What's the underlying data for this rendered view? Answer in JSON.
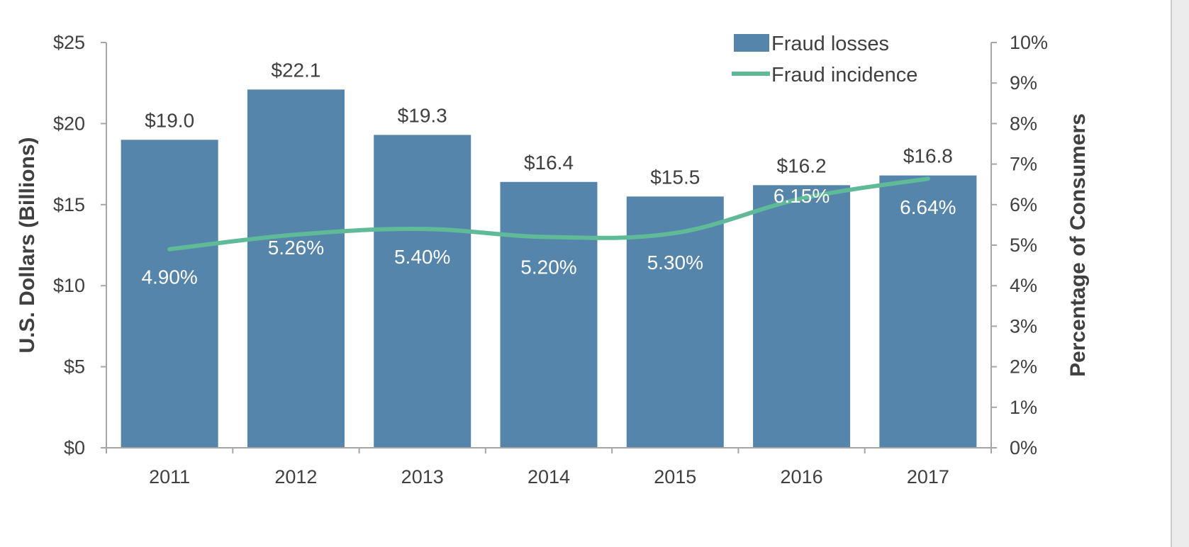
{
  "chart_data": {
    "type": "bar",
    "categories": [
      "2011",
      "2012",
      "2013",
      "2014",
      "2015",
      "2016",
      "2017"
    ],
    "series": [
      {
        "name": "Fraud losses",
        "type": "bar",
        "axis": "left",
        "values": [
          19.0,
          22.1,
          19.3,
          16.4,
          15.5,
          16.2,
          16.8
        ],
        "labels": [
          "$19.0",
          "$22.1",
          "$19.3",
          "$16.4",
          "$15.5",
          "$16.2",
          "$16.8"
        ],
        "color": "#5585aa"
      },
      {
        "name": "Fraud incidence",
        "type": "line",
        "axis": "right",
        "values": [
          4.9,
          5.26,
          5.4,
          5.2,
          5.3,
          6.15,
          6.64
        ],
        "labels": [
          "4.90%",
          "5.26%",
          "5.40%",
          "5.20%",
          "5.30%",
          "6.15%",
          "6.64%"
        ],
        "color": "#5fba98"
      }
    ],
    "left_axis": {
      "title": "U.S. Dollars (Billions)",
      "range": [
        0,
        25
      ],
      "ticks": [
        0,
        5,
        10,
        15,
        20,
        25
      ],
      "tick_labels": [
        "$0",
        "$5",
        "$10",
        "$15",
        "$20",
        "$25"
      ]
    },
    "right_axis": {
      "title": "Percentage of Consumers",
      "range": [
        0,
        10
      ],
      "ticks": [
        0,
        1,
        2,
        3,
        4,
        5,
        6,
        7,
        8,
        9,
        10
      ],
      "tick_labels": [
        "0%",
        "1%",
        "2%",
        "3%",
        "4%",
        "5%",
        "6%",
        "7%",
        "8%",
        "9%",
        "10%"
      ]
    },
    "grid": false,
    "legend_position": "top-right"
  }
}
